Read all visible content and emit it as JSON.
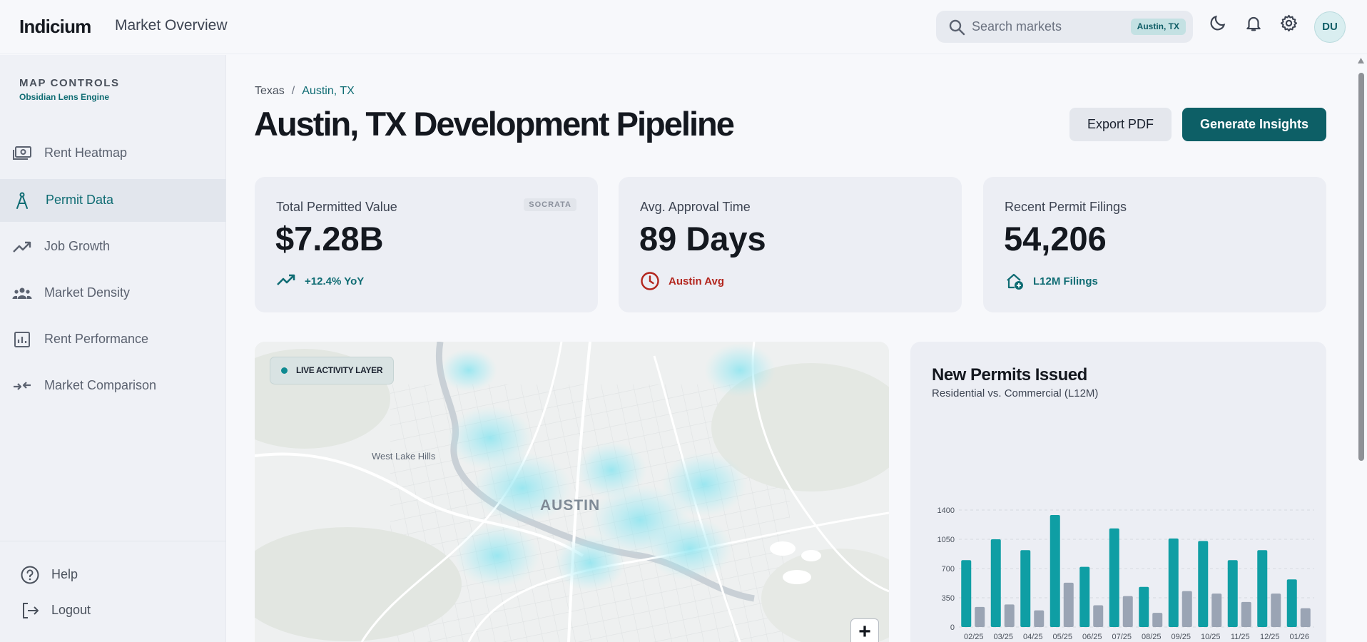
{
  "topbar": {
    "brand": "Indicium",
    "title": "Market Overview",
    "search_placeholder": "Search markets",
    "search_scope": "Austin, TX",
    "avatar_initials": "DU",
    "icons": [
      "search-icon",
      "moon-icon",
      "bell-icon",
      "gear-icon"
    ]
  },
  "sidebar": {
    "heading": "MAP CONTROLS",
    "subheading": "Obsidian Lens Engine",
    "items": [
      {
        "label": "Rent Heatmap",
        "icon": "money-icon",
        "active": false
      },
      {
        "label": "Permit Data",
        "icon": "compass-icon",
        "active": true
      },
      {
        "label": "Job Growth",
        "icon": "trending-up-icon",
        "active": false
      },
      {
        "label": "Market Density",
        "icon": "people-icon",
        "active": false
      },
      {
        "label": "Rent Performance",
        "icon": "bar-chart-icon",
        "active": false
      },
      {
        "label": "Market Comparison",
        "icon": "compare-arrows-icon",
        "active": false
      }
    ],
    "footer": [
      {
        "label": "Help",
        "icon": "help-circle-icon"
      },
      {
        "label": "Logout",
        "icon": "logout-icon"
      }
    ]
  },
  "main": {
    "breadcrumb": {
      "parent": "Texas",
      "separator": "/",
      "current": "Austin, TX"
    },
    "title": "Austin, TX Development Pipeline",
    "actions": {
      "export": "Export PDF",
      "generate": "Generate Insights"
    },
    "cards": [
      {
        "title": "Total Permitted Value",
        "value": "$7.28B",
        "badge": "SOCRATA",
        "footer": "+12.4% YoY",
        "footer_icon": "trending-up-icon",
        "footer_color": "#0f6c73"
      },
      {
        "title": "Avg. Approval Time",
        "value": "89 Days",
        "footer": "Austin Avg",
        "footer_icon": "clock-icon",
        "footer_color": "#b3261e"
      },
      {
        "title": "Recent Permit Filings",
        "value": "54,206",
        "footer": "L12M Filings",
        "footer_icon": "house-add-icon",
        "footer_color": "#0f6c73"
      }
    ],
    "map": {
      "layer_label": "LIVE ACTIVITY LAYER",
      "city_label": "AUSTIN",
      "place_labels": [
        "West Lake Hills"
      ],
      "zoom_in": "+"
    }
  },
  "colors": {
    "accent": "#0d5f66",
    "residential": "#0f9ea4",
    "commercial": "#9aa4b4",
    "danger": "#b3261e"
  },
  "chart_data": {
    "type": "bar",
    "title": "New Permits Issued",
    "subtitle": "Residential vs. Commercial (L12M)",
    "categories": [
      "02/25",
      "03/25",
      "04/25",
      "05/25",
      "06/25",
      "07/25",
      "08/25",
      "09/25",
      "10/25",
      "11/25",
      "12/25",
      "01/26"
    ],
    "series": [
      {
        "values": [
          800,
          1050,
          920,
          1340,
          720,
          1180,
          480,
          1060,
          1030,
          800,
          920,
          570
        ]
      },
      {
        "values": [
          240,
          270,
          200,
          530,
          260,
          370,
          170,
          430,
          400,
          300,
          400,
          225
        ]
      }
    ],
    "yticks": [
      0,
      350,
      700,
      1050,
      1400
    ],
    "ylim": [
      0,
      1400
    ],
    "grid": true
  }
}
